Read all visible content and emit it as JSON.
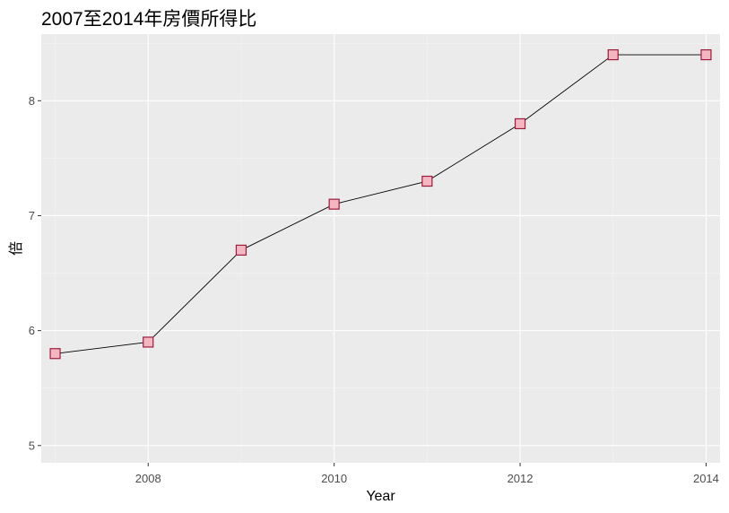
{
  "chart_data": {
    "type": "line",
    "title": "2007至2014年房價所得比",
    "xlabel": "Year",
    "ylabel": "倍",
    "x": [
      2007,
      2008,
      2009,
      2010,
      2011,
      2012,
      2013,
      2014
    ],
    "series": [
      {
        "name": "房價所得比",
        "values": [
          5.8,
          5.9,
          6.7,
          7.1,
          7.3,
          7.8,
          8.4,
          8.4
        ]
      }
    ],
    "xlim": [
      2006.85,
      2014.15
    ],
    "ylim": [
      4.85,
      8.58
    ],
    "xticks": [
      2008,
      2010,
      2012,
      2014
    ],
    "yticks": [
      5,
      6,
      7,
      8
    ],
    "grid": true,
    "legend": "none",
    "colors": {
      "panel": "#ebebeb",
      "line": "#000000",
      "marker_fill": "#f4b6c0",
      "marker_stroke": "#9c1c3c"
    }
  }
}
